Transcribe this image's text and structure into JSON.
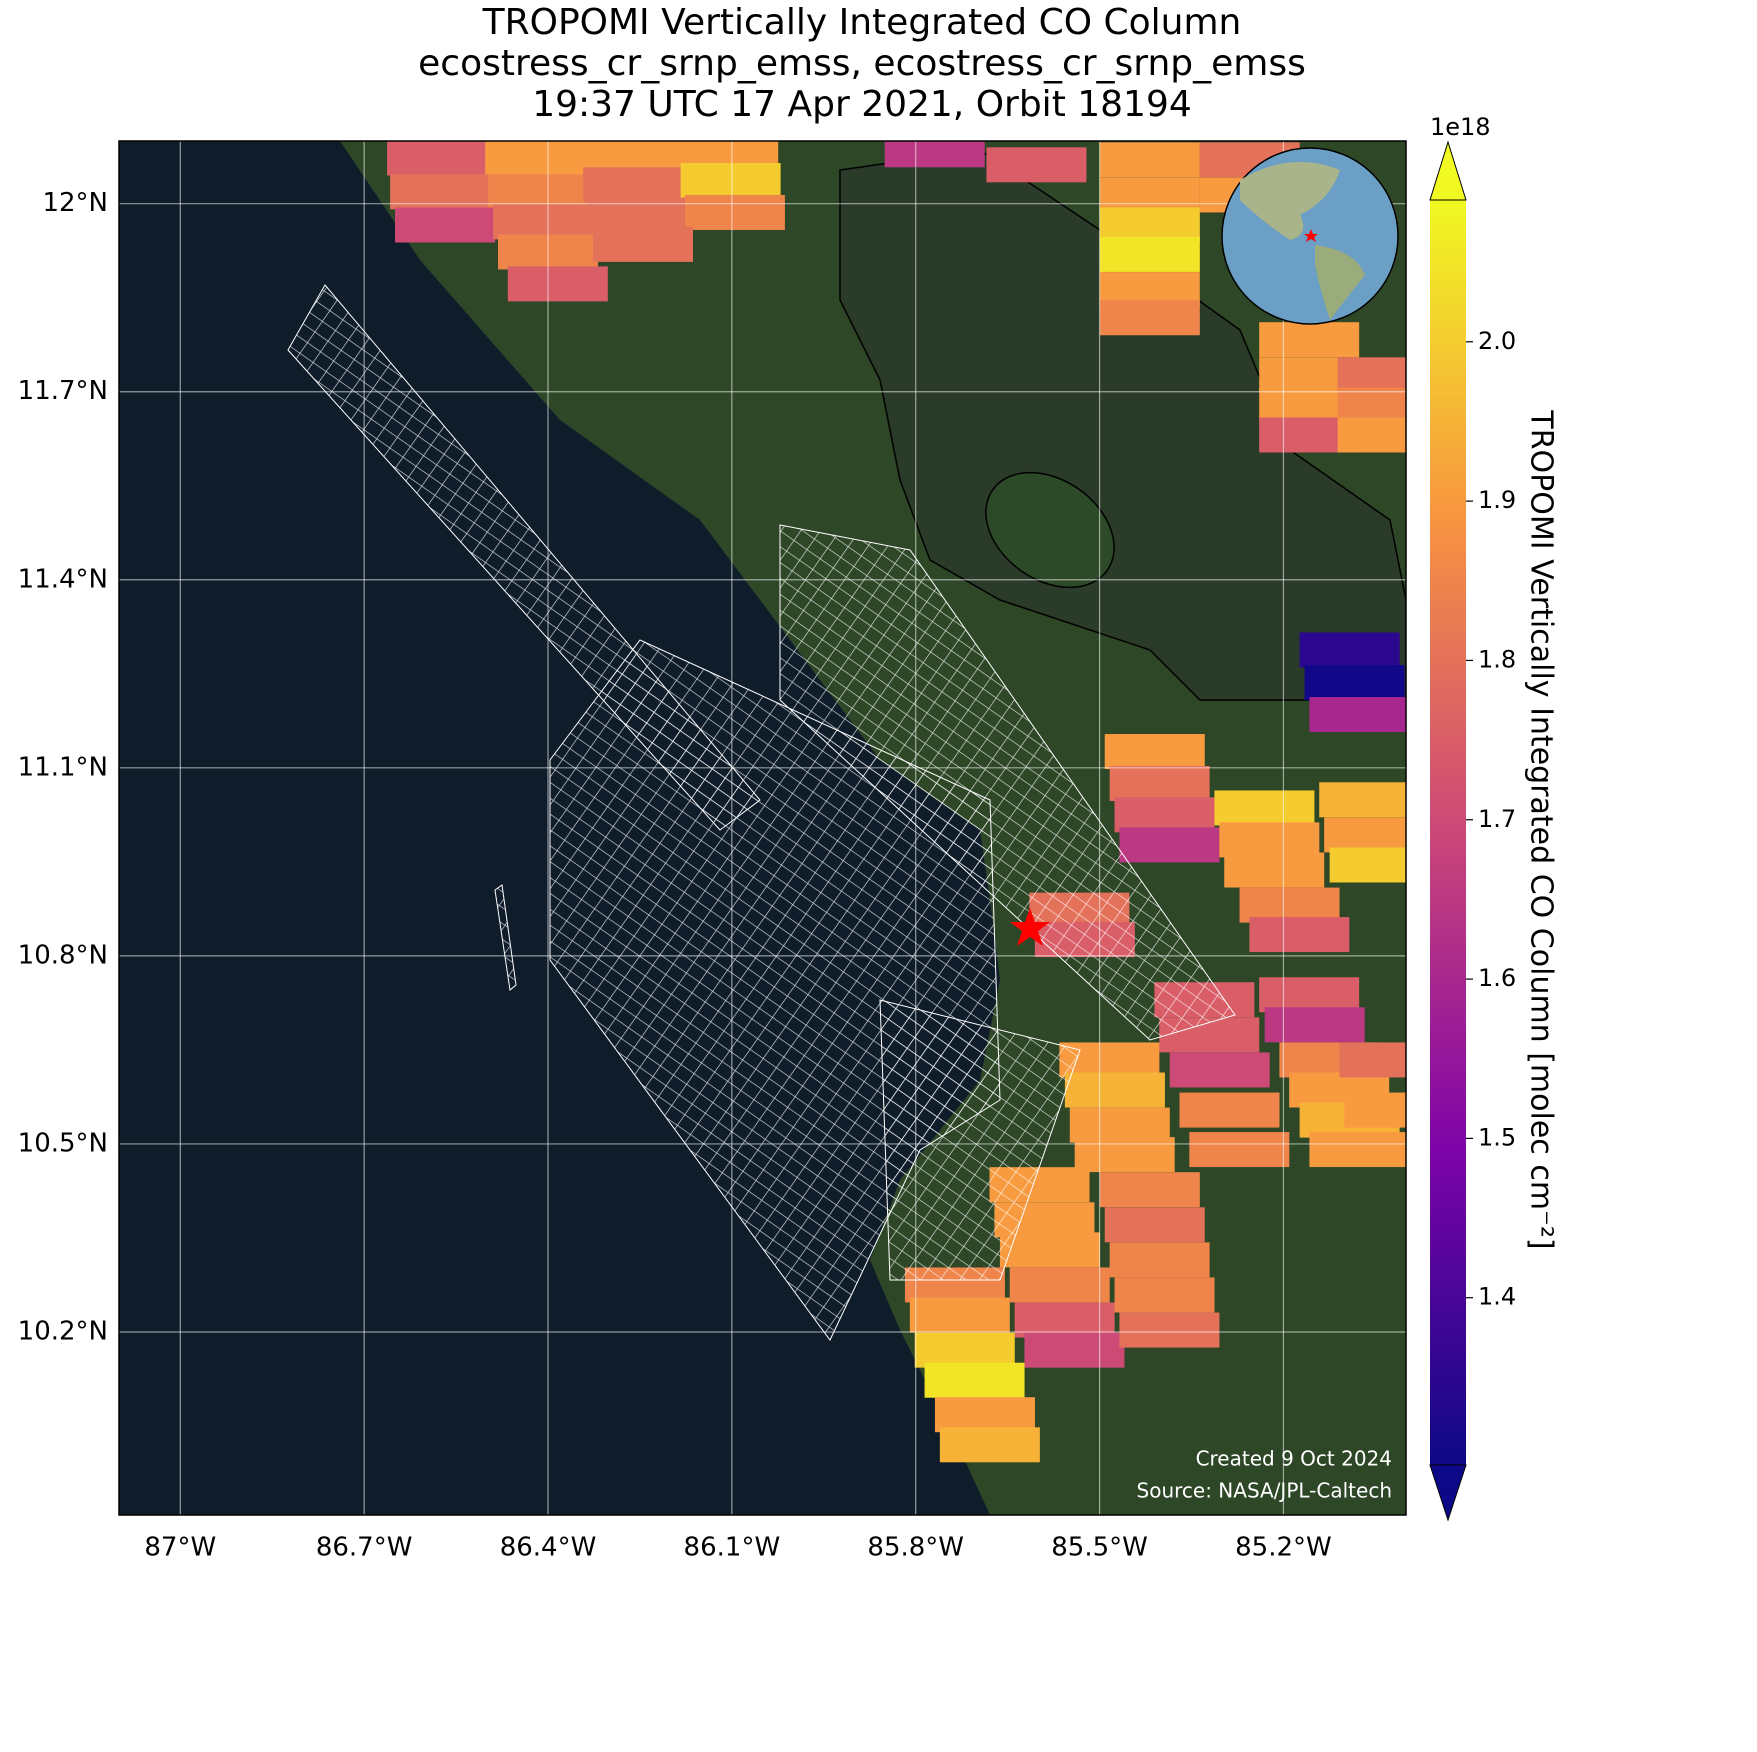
{
  "title": [
    "TROPOMI Vertically Integrated CO Column",
    "ecostress_cr_srnp_emss, ecostress_cr_srnp_emss",
    "19:37 UTC 17 Apr 2021, Orbit 18194"
  ],
  "map": {
    "xlim": [
      -87.1,
      -85.0
    ],
    "ylim": [
      9.908,
      12.1
    ],
    "xticks": [
      {
        "value": -87,
        "label": "87°W"
      },
      {
        "value": -86.7,
        "label": "86.7°W"
      },
      {
        "value": -86.4,
        "label": "86.4°W"
      },
      {
        "value": -86.1,
        "label": "86.1°W"
      },
      {
        "value": -85.8,
        "label": "85.8°W"
      },
      {
        "value": -85.5,
        "label": "85.5°W"
      },
      {
        "value": -85.2,
        "label": "85.2°W"
      }
    ],
    "yticks": [
      {
        "value": 12,
        "label": "12°N"
      },
      {
        "value": 11.7,
        "label": "11.7°N"
      },
      {
        "value": 11.4,
        "label": "11.4°N"
      },
      {
        "value": 11.1,
        "label": "11.1°N"
      },
      {
        "value": 10.8,
        "label": "10.8°N"
      },
      {
        "value": 10.5,
        "label": "10.5°N"
      },
      {
        "value": 10.2,
        "label": "10.2°N"
      }
    ],
    "cells": [
      [
        -86.581,
        12.073,
        1.75
      ],
      [
        -86.421,
        12.073,
        1.9
      ],
      [
        -86.266,
        12.073,
        1.9
      ],
      [
        -86.106,
        12.073,
        1.9
      ],
      [
        -86.576,
        12.019,
        1.8
      ],
      [
        -86.416,
        12.019,
        1.85
      ],
      [
        -86.261,
        12.03,
        1.8
      ],
      [
        -86.102,
        12.037,
        2.0
      ],
      [
        -86.568,
        11.966,
        1.7
      ],
      [
        -86.408,
        11.971,
        1.8
      ],
      [
        -86.253,
        11.982,
        1.8
      ],
      [
        -86.095,
        11.986,
        1.85
      ],
      [
        -86.4,
        11.923,
        1.85
      ],
      [
        -86.245,
        11.935,
        1.8
      ],
      [
        -86.384,
        11.872,
        1.75
      ],
      [
        -85.769,
        12.086,
        1.65
      ],
      [
        -85.603,
        12.062,
        1.75
      ],
      [
        -85.418,
        12.07,
        1.9
      ],
      [
        -85.418,
        12.014,
        1.9
      ],
      [
        -85.418,
        11.966,
        2.0
      ],
      [
        -85.418,
        11.919,
        2.05
      ],
      [
        -85.418,
        11.863,
        1.9
      ],
      [
        -85.418,
        11.818,
        1.85
      ],
      [
        -85.255,
        12.07,
        1.8
      ],
      [
        -85.255,
        12.014,
        1.9
      ],
      [
        -85.158,
        11.783,
        1.9
      ],
      [
        -85.158,
        11.727,
        1.9
      ],
      [
        -85.158,
        11.679,
        1.9
      ],
      [
        -85.158,
        11.631,
        1.75
      ],
      [
        -85.03,
        11.727,
        1.8
      ],
      [
        -85.03,
        11.679,
        1.85
      ],
      [
        -85.03,
        11.631,
        1.9
      ],
      [
        -85.092,
        11.288,
        1.35
      ],
      [
        -85.084,
        11.236,
        1.3
      ],
      [
        -85.076,
        11.185,
        1.6
      ],
      [
        -85.41,
        11.126,
        1.9
      ],
      [
        -85.402,
        11.075,
        1.8
      ],
      [
        -85.394,
        11.025,
        1.75
      ],
      [
        -85.386,
        10.977,
        1.65
      ],
      [
        -85.231,
        11.036,
        2.0
      ],
      [
        -85.223,
        10.985,
        1.9
      ],
      [
        -85.215,
        10.937,
        1.9
      ],
      [
        -85.19,
        10.881,
        1.85
      ],
      [
        -85.174,
        10.834,
        1.75
      ],
      [
        -85.06,
        11.049,
        1.95
      ],
      [
        -85.052,
        10.993,
        1.9
      ],
      [
        -85.043,
        10.945,
        2.0
      ],
      [
        -85.533,
        10.873,
        1.8
      ],
      [
        -85.524,
        10.826,
        1.75
      ],
      [
        -85.329,
        10.73,
        1.75
      ],
      [
        -85.321,
        10.674,
        1.75
      ],
      [
        -85.304,
        10.618,
        1.7
      ],
      [
        -85.158,
        10.738,
        1.75
      ],
      [
        -85.149,
        10.69,
        1.65
      ],
      [
        -85.125,
        10.634,
        1.85
      ],
      [
        -85.109,
        10.586,
        1.9
      ],
      [
        -85.092,
        10.538,
        1.95
      ],
      [
        -85.076,
        10.491,
        1.9
      ],
      [
        -85.288,
        10.554,
        1.85
      ],
      [
        -85.272,
        10.491,
        1.85
      ],
      [
        -85.027,
        10.634,
        1.8
      ],
      [
        -85.019,
        10.554,
        1.9
      ],
      [
        -85.484,
        10.634,
        1.9
      ],
      [
        -85.475,
        10.586,
        1.95
      ],
      [
        -85.467,
        10.53,
        1.9
      ],
      [
        -85.459,
        10.483,
        1.9
      ],
      [
        -85.598,
        10.435,
        1.9
      ],
      [
        -85.59,
        10.379,
        1.9
      ],
      [
        -85.581,
        10.331,
        1.9
      ],
      [
        -85.565,
        10.275,
        1.85
      ],
      [
        -85.557,
        10.219,
        1.75
      ],
      [
        -85.541,
        10.171,
        1.7
      ],
      [
        -85.418,
        10.427,
        1.85
      ],
      [
        -85.41,
        10.371,
        1.8
      ],
      [
        -85.402,
        10.315,
        1.85
      ],
      [
        -85.394,
        10.259,
        1.85
      ],
      [
        -85.386,
        10.203,
        1.8
      ],
      [
        -85.736,
        10.275,
        1.85
      ],
      [
        -85.728,
        10.227,
        1.9
      ],
      [
        -85.72,
        10.171,
        2.0
      ],
      [
        -85.704,
        10.123,
        2.05
      ],
      [
        -85.687,
        10.068,
        1.9
      ],
      [
        -85.679,
        10.02,
        1.95
      ]
    ],
    "footer": [
      "Created 9 Oct 2024",
      "Source: NASA/JPL-Caltech"
    ]
  },
  "colorbar": {
    "lim": [
      1.295,
      2.089
    ],
    "ticks": [
      1.4,
      1.5,
      1.6,
      1.7,
      1.8,
      1.9,
      {
        "value": 2,
        "label": "2.0"
      }
    ],
    "offset_label": "1e18",
    "label": "TROPOMI Vertically Integrated CO Column [molec cm⁻²]"
  }
}
